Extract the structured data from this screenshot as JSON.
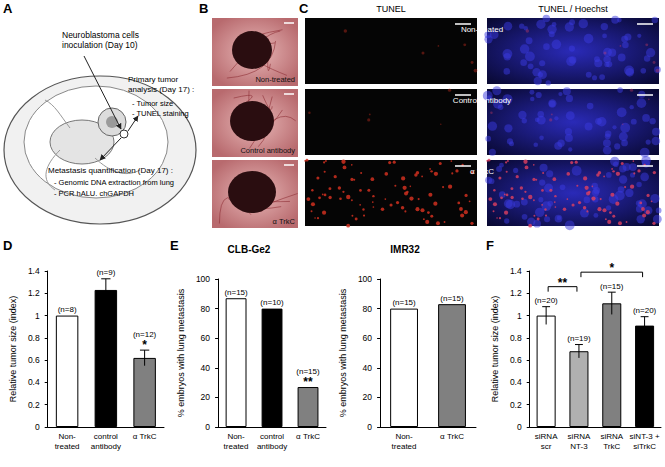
{
  "panel_labels": [
    "A",
    "B",
    "C",
    "D",
    "E",
    "F"
  ],
  "schematic": {
    "inoculation": "Neuroblastoma cells\ninoculation (Day 10)",
    "primary": {
      "heading": "Primary tumor\nanalysis (Day 17) :",
      "items": [
        "- Tumor size",
        "- TUNEL staining"
      ]
    },
    "metastasis": {
      "heading": "Metastasis quantification (Day 17) :",
      "items": [
        "- Genomic DNA extraction from lung",
        "- PCR hALU. chGAPDH"
      ]
    }
  },
  "photos": {
    "labels": [
      "Non-treated",
      "Control antibody",
      "α TrkC"
    ]
  },
  "microscopy": {
    "columns": [
      "TUNEL",
      "TUNEL / Hoechst"
    ],
    "rows": [
      "Non-treated",
      "Control antibody",
      "α TrkC"
    ]
  },
  "chart_data": [
    {
      "type": "bar",
      "ylabel": "Relative tumor size (index)",
      "categories": [
        "Non-\ntreated",
        "control\nantibody",
        "α TrkC"
      ],
      "values": [
        1.0,
        1.23,
        0.62
      ],
      "errors": [
        0,
        0.1,
        0.07
      ],
      "n_labels": [
        "(n=8)",
        "(n=9)",
        "(n=12)"
      ],
      "colors": [
        "#ffffff",
        "#000000",
        "#808080"
      ],
      "annotations": [
        {
          "text": "*",
          "category": "α TrkC"
        }
      ],
      "ylim": [
        0,
        1.4
      ],
      "yticks": [
        0,
        0.2,
        0.4,
        0.6,
        0.8,
        1,
        1.2,
        1.4
      ],
      "grid": false
    },
    {
      "type": "bar",
      "title": "CLB-Ge2",
      "ylabel": "% embryos with lung metastasis",
      "categories": [
        "Non-\ntreated",
        "control\nantibody",
        "α TrkC"
      ],
      "values": [
        87,
        80,
        27
      ],
      "n_labels": [
        "(n=15)",
        "(n=10)",
        "(n=15)"
      ],
      "colors": [
        "#ffffff",
        "#000000",
        "#808080"
      ],
      "annotations": [
        {
          "text": "**",
          "category": "α TrkC"
        }
      ],
      "ylim": [
        0,
        100
      ],
      "yticks": [
        0,
        20,
        40,
        60,
        80,
        100
      ],
      "grid": false
    },
    {
      "type": "bar",
      "title": "IMR32",
      "ylabel": "% embryos with lung metastasis",
      "categories": [
        "Non-\ntreated",
        "α TrkC"
      ],
      "values": [
        80,
        83
      ],
      "n_labels": [
        "(n=15)",
        "(n=15)"
      ],
      "colors": [
        "#ffffff",
        "#808080"
      ],
      "ylim": [
        0,
        100
      ],
      "yticks": [
        0,
        20,
        40,
        60,
        80,
        100
      ],
      "grid": false
    },
    {
      "type": "bar",
      "ylabel": "Relative tumor size (index)",
      "categories": [
        "siRNA\nscr",
        "siRNA\nNT-3",
        "siRNA\nTrkC",
        "siNT-3 +\nsiTrkC"
      ],
      "values": [
        1.0,
        0.68,
        1.11,
        0.91
      ],
      "errors": [
        0.08,
        0.06,
        0.1,
        0.08
      ],
      "n_labels": [
        "(n=20)",
        "(n=19)",
        "(n=15)",
        "(n=20)"
      ],
      "colors": [
        "#ffffff",
        "#b0b0b0",
        "#808080",
        "#000000"
      ],
      "annotations": [
        {
          "text": "**",
          "from": "siRNA\nscr",
          "to": "siRNA\nNT-3"
        },
        {
          "text": "*",
          "from": "siRNA\nNT-3",
          "to": "siNT-3 +\nsiTrkC"
        }
      ],
      "ylim": [
        0,
        1.4
      ],
      "yticks": [
        0,
        0.2,
        0.4,
        0.6,
        0.8,
        1,
        1.2,
        1.4
      ],
      "grid": false
    }
  ]
}
